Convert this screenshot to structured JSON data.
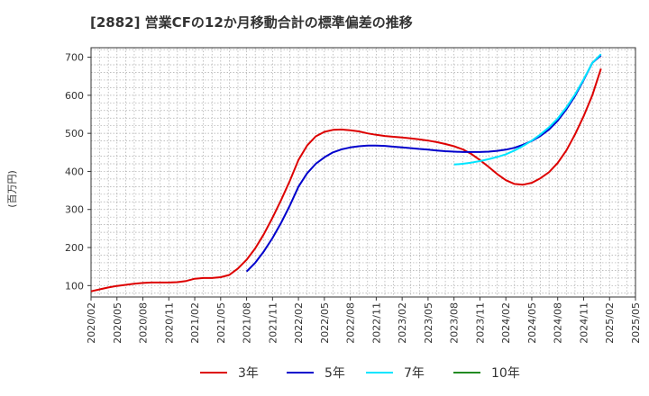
{
  "chart_data": {
    "type": "line",
    "title": "[2882]  営業CFの12か月移動合計の標準偏差の推移",
    "ylabel": "(百万円)",
    "xlabel": "",
    "ylim": [
      70,
      725
    ],
    "yticks": [
      100,
      200,
      300,
      400,
      500,
      600,
      700
    ],
    "xlim": [
      "2020/02",
      "2025/05"
    ],
    "xticks": [
      "2020/02",
      "2020/05",
      "2020/08",
      "2020/11",
      "2021/02",
      "2021/05",
      "2021/08",
      "2021/11",
      "2022/02",
      "2022/05",
      "2022/08",
      "2022/11",
      "2023/02",
      "2023/05",
      "2023/08",
      "2023/11",
      "2024/02",
      "2024/05",
      "2024/08",
      "2024/11",
      "2025/02",
      "2025/05"
    ],
    "grid": true,
    "legend_position": "bottom",
    "series": [
      {
        "name": "3年",
        "color": "#dd0000",
        "points": [
          [
            "2020/02",
            85
          ],
          [
            "2020/03",
            90
          ],
          [
            "2020/04",
            95
          ],
          [
            "2020/05",
            99
          ],
          [
            "2020/06",
            102
          ],
          [
            "2020/07",
            105
          ],
          [
            "2020/08",
            107
          ],
          [
            "2020/09",
            108
          ],
          [
            "2020/10",
            108
          ],
          [
            "2020/11",
            108
          ],
          [
            "2020/12",
            109
          ],
          [
            "2021/01",
            112
          ],
          [
            "2021/02",
            118
          ],
          [
            "2021/03",
            120
          ],
          [
            "2021/04",
            120
          ],
          [
            "2021/05",
            122
          ],
          [
            "2021/06",
            128
          ],
          [
            "2021/07",
            145
          ],
          [
            "2021/08",
            168
          ],
          [
            "2021/09",
            198
          ],
          [
            "2021/10",
            235
          ],
          [
            "2021/11",
            278
          ],
          [
            "2021/12",
            325
          ],
          [
            "2022/01",
            375
          ],
          [
            "2022/02",
            430
          ],
          [
            "2022/03",
            468
          ],
          [
            "2022/04",
            492
          ],
          [
            "2022/05",
            504
          ],
          [
            "2022/06",
            509
          ],
          [
            "2022/07",
            510
          ],
          [
            "2022/08",
            508
          ],
          [
            "2022/09",
            505
          ],
          [
            "2022/10",
            500
          ],
          [
            "2022/11",
            496
          ],
          [
            "2022/12",
            493
          ],
          [
            "2023/01",
            491
          ],
          [
            "2023/02",
            489
          ],
          [
            "2023/03",
            487
          ],
          [
            "2023/04",
            484
          ],
          [
            "2023/05",
            481
          ],
          [
            "2023/06",
            477
          ],
          [
            "2023/07",
            472
          ],
          [
            "2023/08",
            466
          ],
          [
            "2023/09",
            458
          ],
          [
            "2023/10",
            446
          ],
          [
            "2023/11",
            430
          ],
          [
            "2023/12",
            412
          ],
          [
            "2024/01",
            393
          ],
          [
            "2024/02",
            377
          ],
          [
            "2024/03",
            367
          ],
          [
            "2024/04",
            365
          ],
          [
            "2024/05",
            370
          ],
          [
            "2024/06",
            382
          ],
          [
            "2024/07",
            398
          ],
          [
            "2024/08",
            422
          ],
          [
            "2024/09",
            455
          ],
          [
            "2024/10",
            497
          ],
          [
            "2024/11",
            545
          ],
          [
            "2024/12",
            600
          ],
          [
            "2025/01",
            670
          ]
        ]
      },
      {
        "name": "5年",
        "color": "#0000cc",
        "points": [
          [
            "2021/08",
            137
          ],
          [
            "2021/09",
            160
          ],
          [
            "2021/10",
            190
          ],
          [
            "2021/11",
            225
          ],
          [
            "2021/12",
            265
          ],
          [
            "2022/01",
            310
          ],
          [
            "2022/02",
            360
          ],
          [
            "2022/03",
            395
          ],
          [
            "2022/04",
            420
          ],
          [
            "2022/05",
            437
          ],
          [
            "2022/06",
            450
          ],
          [
            "2022/07",
            458
          ],
          [
            "2022/08",
            463
          ],
          [
            "2022/09",
            466
          ],
          [
            "2022/10",
            468
          ],
          [
            "2022/11",
            468
          ],
          [
            "2022/12",
            467
          ],
          [
            "2023/01",
            465
          ],
          [
            "2023/02",
            463
          ],
          [
            "2023/03",
            461
          ],
          [
            "2023/04",
            459
          ],
          [
            "2023/05",
            457
          ],
          [
            "2023/06",
            455
          ],
          [
            "2023/07",
            453
          ],
          [
            "2023/08",
            452
          ],
          [
            "2023/09",
            451
          ],
          [
            "2023/10",
            451
          ],
          [
            "2023/11",
            451
          ],
          [
            "2023/12",
            452
          ],
          [
            "2024/01",
            454
          ],
          [
            "2024/02",
            457
          ],
          [
            "2024/03",
            462
          ],
          [
            "2024/04",
            470
          ],
          [
            "2024/05",
            480
          ],
          [
            "2024/06",
            493
          ],
          [
            "2024/07",
            510
          ],
          [
            "2024/08",
            533
          ],
          [
            "2024/09",
            563
          ],
          [
            "2024/10",
            598
          ],
          [
            "2024/11",
            640
          ],
          [
            "2024/12",
            685
          ],
          [
            "2025/01",
            705
          ]
        ]
      },
      {
        "name": "7年",
        "color": "#00e5ff",
        "points": [
          [
            "2023/08",
            418
          ],
          [
            "2023/09",
            420
          ],
          [
            "2023/10",
            423
          ],
          [
            "2023/11",
            427
          ],
          [
            "2023/12",
            432
          ],
          [
            "2024/01",
            438
          ],
          [
            "2024/02",
            445
          ],
          [
            "2024/03",
            455
          ],
          [
            "2024/04",
            467
          ],
          [
            "2024/05",
            481
          ],
          [
            "2024/06",
            497
          ],
          [
            "2024/07",
            516
          ],
          [
            "2024/08",
            539
          ],
          [
            "2024/09",
            568
          ],
          [
            "2024/10",
            602
          ],
          [
            "2024/11",
            642
          ],
          [
            "2024/12",
            685
          ],
          [
            "2025/01",
            708
          ]
        ]
      },
      {
        "name": "10年",
        "color": "#228b22",
        "points": []
      }
    ]
  }
}
